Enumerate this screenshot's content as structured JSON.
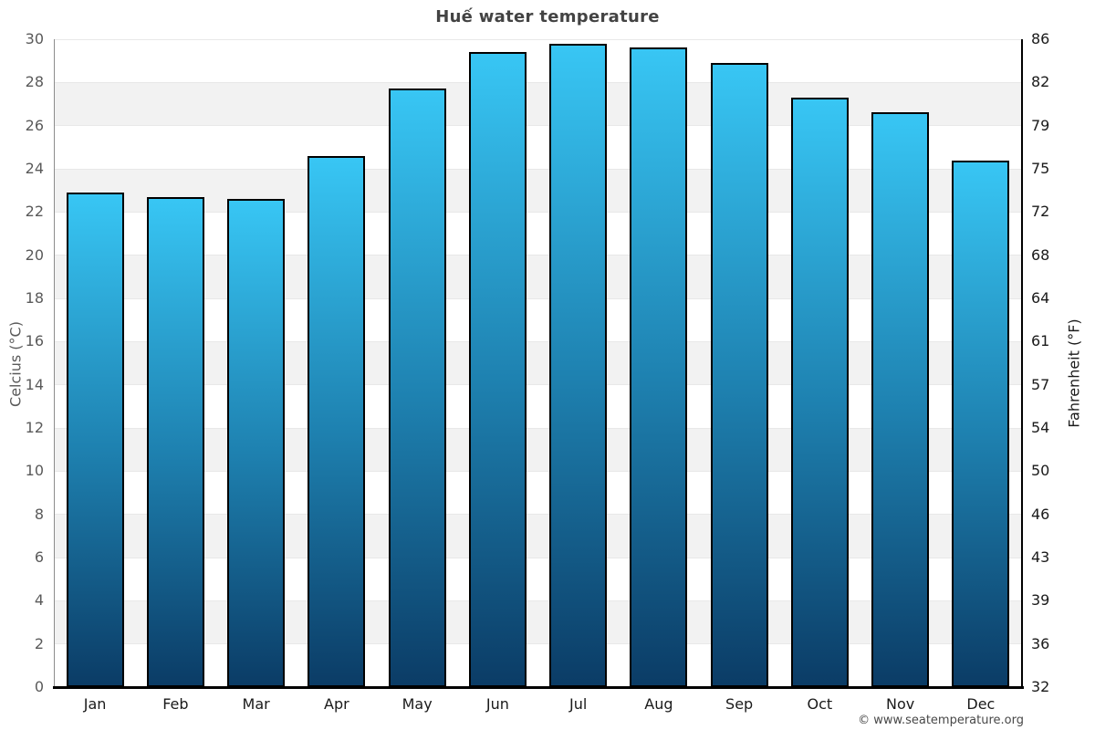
{
  "title": "Huế water temperature",
  "y_axis_left": {
    "label": "Celcius (°C)"
  },
  "y_axis_right": {
    "label": "Fahrenheit (°F)"
  },
  "footer": {
    "credit": "© www.seatemperature.org"
  },
  "chart_data": {
    "type": "bar",
    "title": "Huế water temperature",
    "categories": [
      "Jan",
      "Feb",
      "Mar",
      "Apr",
      "May",
      "Jun",
      "Jul",
      "Aug",
      "Sep",
      "Oct",
      "Nov",
      "Dec"
    ],
    "values": [
      22.9,
      22.7,
      22.6,
      24.6,
      27.7,
      29.4,
      29.8,
      29.6,
      28.9,
      27.3,
      26.6,
      24.4
    ],
    "unit": "°C",
    "ylabel_left": "Celcius (°C)",
    "ylabel_right": "Fahrenheit (°F)",
    "ylim_celsius": [
      0,
      30
    ],
    "ytick_step_celsius": 2,
    "yticks_celsius": [
      0,
      2,
      4,
      6,
      8,
      10,
      12,
      14,
      16,
      18,
      20,
      22,
      24,
      26,
      28,
      30
    ],
    "yticks_fahrenheit": [
      32,
      36,
      39,
      43,
      46,
      50,
      54,
      57,
      61,
      64,
      68,
      72,
      75,
      79,
      82,
      86
    ],
    "grid": "horizontal stripes every 2°C, alternating white and light gray",
    "legend": "none",
    "colors": {
      "bar_gradient_top": "#38c6f4",
      "bar_gradient_mid": "#1e81b0",
      "bar_gradient_bottom": "#0b3c66",
      "bar_border": "#000000",
      "stripe_gray": "#f2f2f2",
      "gridline": "#e8e8e8",
      "axis_left_line": "#8c8c8c",
      "axis_right_line": "#000000",
      "axis_bottom_line": "#000000",
      "title_color": "#434343"
    }
  }
}
